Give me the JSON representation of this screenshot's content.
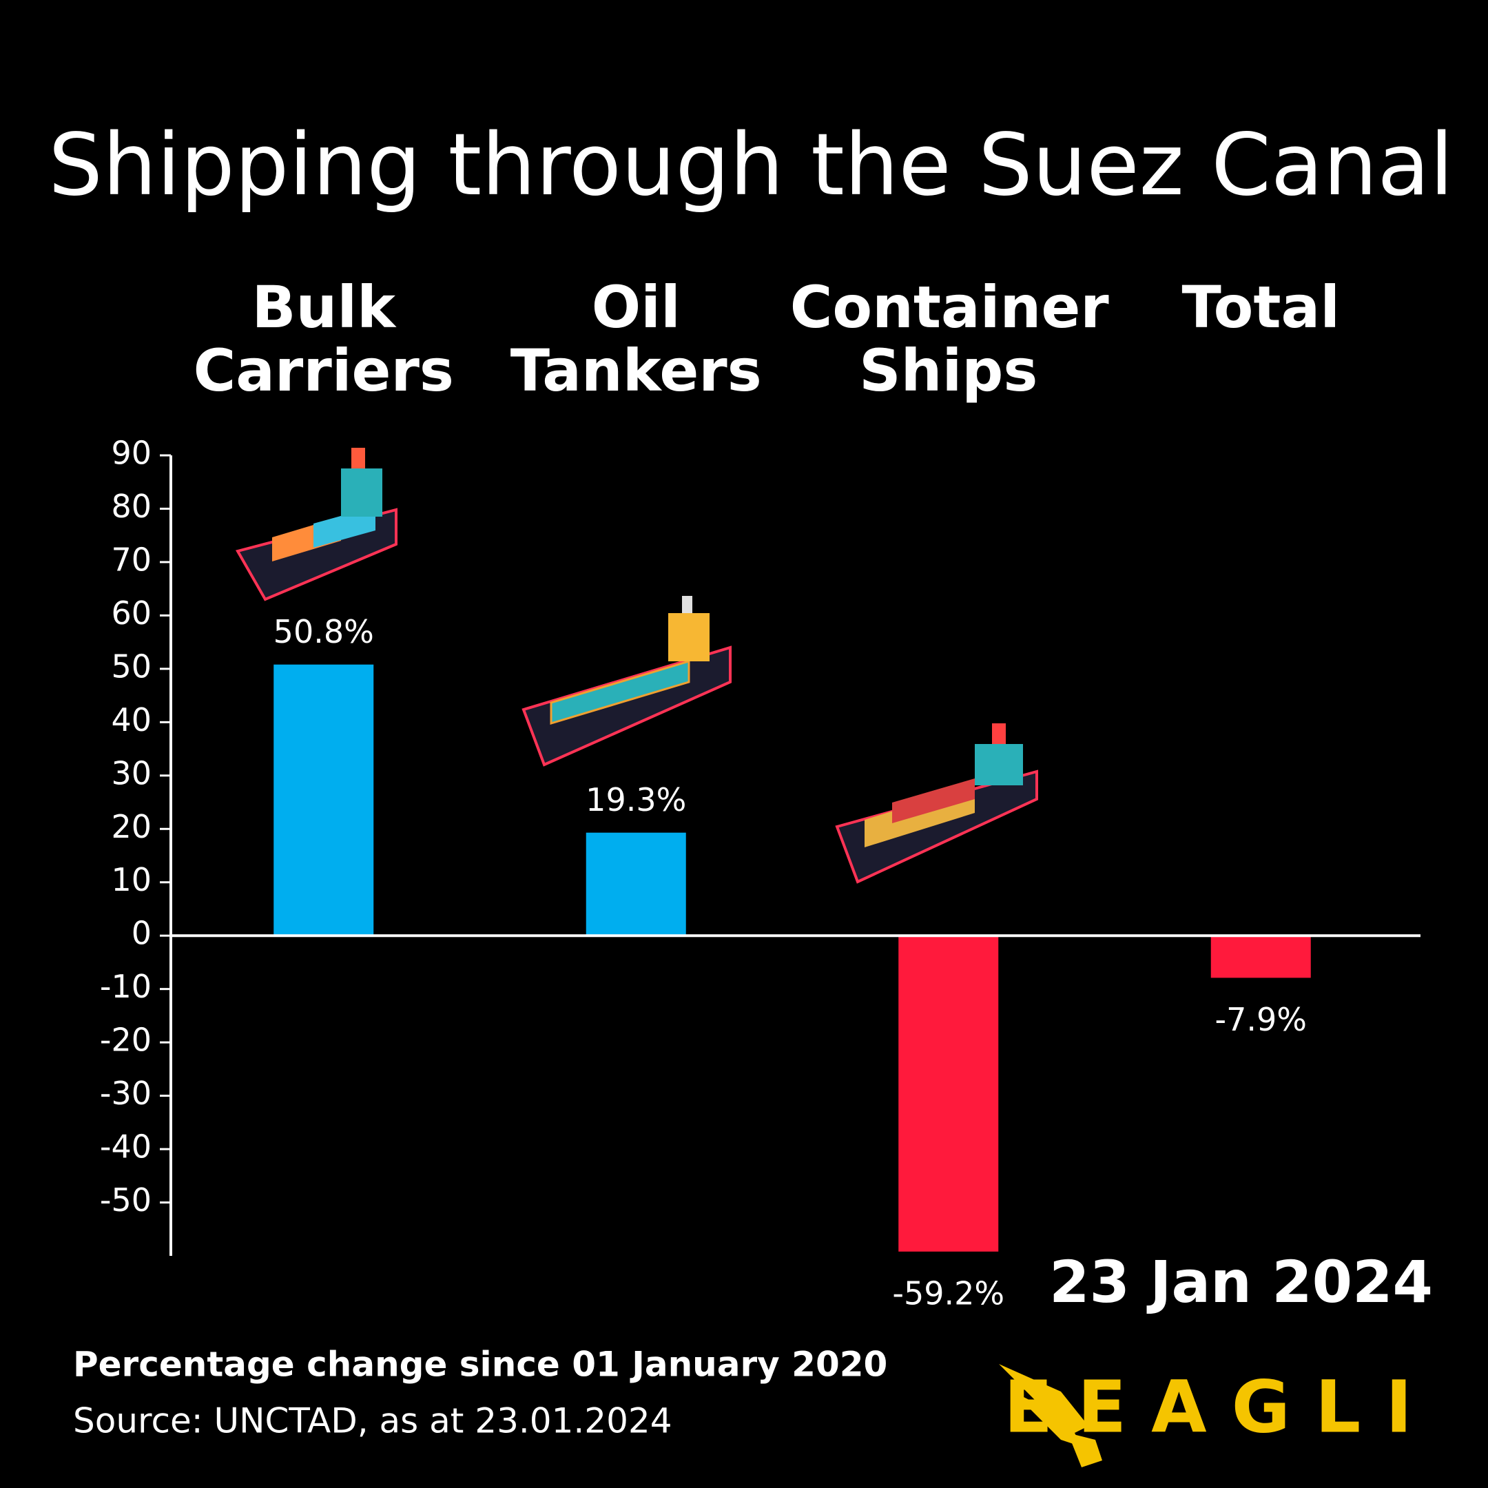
{
  "chart_data": {
    "type": "bar",
    "title": "Shipping through the Suez Canal",
    "categories": [
      "Bulk Carriers",
      "Oil Tankers",
      "Container Ships",
      "Total"
    ],
    "values": [
      50.8,
      19.3,
      -59.2,
      -7.9
    ],
    "value_labels": [
      "50.8%",
      "19.3%",
      "-59.2%",
      "-7.9%"
    ],
    "positive_color": "#00aeef",
    "negative_color": "#ff1a3c",
    "ylim": [
      -60,
      90
    ],
    "yticks": [
      90,
      80,
      70,
      60,
      50,
      40,
      30,
      20,
      10,
      0,
      -10,
      -20,
      -30,
      -40,
      -50
    ],
    "date": "23 Jan 2024",
    "subtitle": "Percentage change since 01 January 2020",
    "source": "Source: UNCTAD, as at 23.01.2024",
    "brand": "EEAGLI"
  }
}
